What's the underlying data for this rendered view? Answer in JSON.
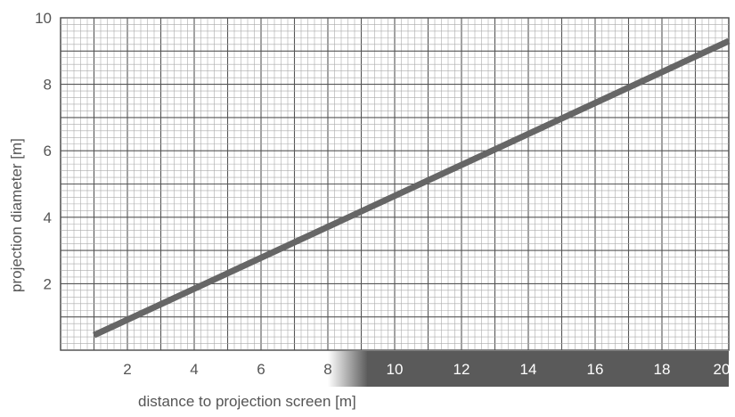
{
  "chart_data": {
    "type": "line",
    "title": "",
    "xlabel": "distance to projection screen [m]",
    "ylabel": "projection diameter [m]",
    "xlim": [
      0,
      20
    ],
    "ylim": [
      0,
      10
    ],
    "x_ticks": [
      "2",
      "4",
      "6",
      "8",
      "10",
      "12",
      "14",
      "16",
      "18",
      "20"
    ],
    "y_ticks": [
      "2",
      "4",
      "6",
      "8",
      "10"
    ],
    "grid": true,
    "series": [
      {
        "x": [
          1,
          20
        ],
        "y": [
          0.45,
          9.3
        ]
      }
    ]
  },
  "colors": {
    "line": "#666666",
    "grid_minor": "#aaaaaa",
    "grid_major": "#555555",
    "axis_band": "#5a5a5a",
    "tick_text_dark": "#555555",
    "tick_text_light": "#ffffff"
  }
}
